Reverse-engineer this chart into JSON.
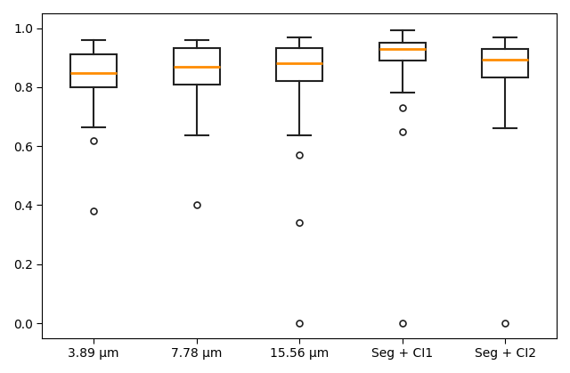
{
  "labels": [
    "3.89 μm",
    "7.78 μm",
    "15.56 μm",
    "Seg + CI1",
    "Seg + CI2"
  ],
  "boxes": [
    {
      "med": 0.848,
      "q1": 0.8,
      "q3": 0.91,
      "whislo": 0.665,
      "whishi": 0.96,
      "fliers": [
        0.62,
        0.38
      ]
    },
    {
      "med": 0.868,
      "q1": 0.81,
      "q3": 0.932,
      "whislo": 0.638,
      "whishi": 0.958,
      "fliers": [
        0.4
      ]
    },
    {
      "med": 0.88,
      "q1": 0.82,
      "q3": 0.933,
      "whislo": 0.638,
      "whishi": 0.97,
      "fliers": [
        0.57,
        0.34,
        0.0
      ]
    },
    {
      "med": 0.93,
      "q1": 0.89,
      "q3": 0.95,
      "whislo": 0.78,
      "whishi": 0.993,
      "fliers": [
        0.73,
        0.65,
        0.0
      ]
    },
    {
      "med": 0.892,
      "q1": 0.833,
      "q3": 0.93,
      "whislo": 0.66,
      "whishi": 0.97,
      "fliers": [
        0.0
      ]
    }
  ],
  "ylim": [
    -0.05,
    1.05
  ],
  "yticks": [
    0.0,
    0.2,
    0.4,
    0.6,
    0.8,
    1.0
  ],
  "median_color": "#ff8c00",
  "box_facecolor": "white",
  "box_edgecolor": "#222222",
  "flier_color": "#222222",
  "whisker_color": "#222222",
  "cap_color": "#222222",
  "figsize": [
    6.4,
    4.19
  ],
  "dpi": 100
}
